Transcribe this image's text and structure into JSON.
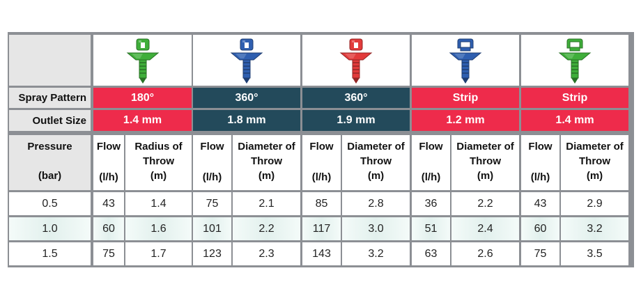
{
  "table": {
    "row_labels": {
      "spray_pattern": "Spray Pattern",
      "outlet_size": "Outlet Size"
    },
    "pressure_header": {
      "line1": "Pressure",
      "line2": "(bar)"
    },
    "colors": {
      "red": "#ee2b4b",
      "navy": "#234a5b",
      "grid": "#8c8f94"
    },
    "products": [
      {
        "icon": "green-180-nozzle-icon",
        "nozzle_color": "#3fae3a",
        "spray_pattern": "180°",
        "outlet_size": "1.4 mm",
        "band_color": "#ee2b4b",
        "headers": {
          "flow": "Flow",
          "flow_unit": "(l/h)",
          "metric_line1": "Radius of",
          "metric_line2": "Throw",
          "metric_unit": "(m)"
        }
      },
      {
        "icon": "blue-360-nozzle-icon",
        "nozzle_color": "#2f5fb0",
        "spray_pattern": "360°",
        "outlet_size": "1.8 mm",
        "band_color": "#234a5b",
        "headers": {
          "flow": "Flow",
          "flow_unit": "(l/h)",
          "metric_line1": "Diameter of",
          "metric_line2": "Throw",
          "metric_unit": "(m)"
        }
      },
      {
        "icon": "red-360-nozzle-icon",
        "nozzle_color": "#e23b3b",
        "spray_pattern": "360°",
        "outlet_size": "1.9 mm",
        "band_color": "#234a5b",
        "headers": {
          "flow": "Flow",
          "flow_unit": "(l/h)",
          "metric_line1": "Diameter of",
          "metric_line2": "Throw",
          "metric_unit": "(m)"
        }
      },
      {
        "icon": "blue-strip-nozzle-icon",
        "nozzle_color": "#2f5fb0",
        "spray_pattern": "Strip",
        "outlet_size": "1.2 mm",
        "band_color": "#ee2b4b",
        "headers": {
          "flow": "Flow",
          "flow_unit": "(l/h)",
          "metric_line1": "Diameter of",
          "metric_line2": "Throw",
          "metric_unit": "(m)"
        }
      },
      {
        "icon": "green-strip-nozzle-icon",
        "nozzle_color": "#3fae3a",
        "spray_pattern": "Strip",
        "outlet_size": "1.4 mm",
        "band_color": "#ee2b4b",
        "headers": {
          "flow": "Flow",
          "flow_unit": "(l/h)",
          "metric_line1": "Diameter of",
          "metric_line2": "Throw",
          "metric_unit": "(m)"
        }
      }
    ],
    "rows": [
      {
        "pressure": "0.5",
        "values": [
          "43",
          "1.4",
          "75",
          "2.1",
          "85",
          "2.8",
          "36",
          "2.2",
          "43",
          "2.9"
        ]
      },
      {
        "pressure": "1.0",
        "values": [
          "60",
          "1.6",
          "101",
          "2.2",
          "117",
          "3.0",
          "51",
          "2.4",
          "60",
          "3.2"
        ]
      },
      {
        "pressure": "1.5",
        "values": [
          "75",
          "1.7",
          "123",
          "2.3",
          "143",
          "3.2",
          "63",
          "2.6",
          "75",
          "3.5"
        ]
      }
    ]
  }
}
